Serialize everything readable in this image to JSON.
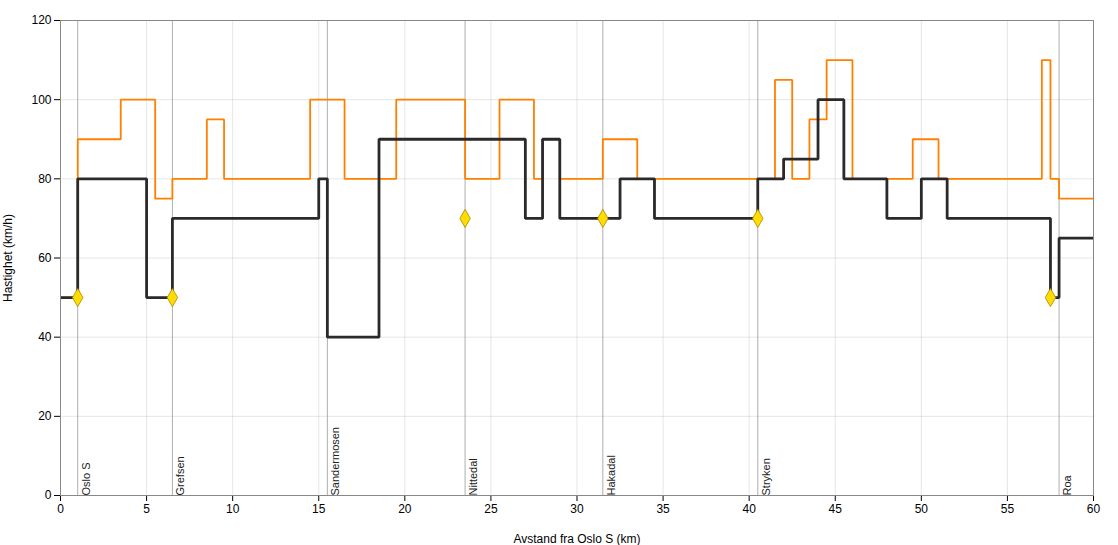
{
  "chart_data": {
    "type": "line",
    "xlabel": "Avstand fra Oslo S (km)",
    "ylabel": "Hastighet (km/h)",
    "xlim": [
      0,
      60
    ],
    "ylim": [
      0,
      120
    ],
    "xticks": [
      0,
      5,
      10,
      15,
      20,
      25,
      30,
      35,
      40,
      45,
      50,
      55,
      60
    ],
    "yticks": [
      0,
      20,
      40,
      60,
      80,
      100,
      120
    ],
    "grid": true,
    "series": [
      {
        "type": "line",
        "color": "#ff8000",
        "x": [
          0,
          1.0,
          1.0,
          3.5,
          3.5,
          5.5,
          5.5,
          6.5,
          6.5,
          8.5,
          8.5,
          9.5,
          9.5,
          14.5,
          14.5,
          16.5,
          16.5,
          19.5,
          19.5,
          23.5,
          23.5,
          25.5,
          25.5,
          27.5,
          27.5,
          28.0,
          28.0,
          29.0,
          29.0,
          31.5,
          31.5,
          33.5,
          33.5,
          40.5,
          40.5,
          41.5,
          41.5,
          42.5,
          42.5,
          43.5,
          43.5,
          44.5,
          44.5,
          46.0,
          46.0,
          48.0,
          48.0,
          49.5,
          49.5,
          51.0,
          51.0,
          51.5,
          51.5,
          55.5,
          55.5,
          57.0,
          57.0,
          57.5,
          57.5,
          58.0,
          58.0,
          60
        ],
        "values": [
          50,
          50,
          90,
          90,
          100,
          100,
          75,
          75,
          80,
          80,
          95,
          95,
          80,
          80,
          100,
          100,
          80,
          80,
          100,
          100,
          80,
          80,
          100,
          100,
          80,
          80,
          90,
          90,
          80,
          80,
          90,
          90,
          80,
          80,
          80,
          80,
          105,
          105,
          80,
          80,
          95,
          95,
          110,
          110,
          80,
          80,
          80,
          80,
          90,
          90,
          80,
          80,
          80,
          80,
          80,
          80,
          110,
          110,
          80,
          80,
          75,
          75
        ]
      },
      {
        "type": "line",
        "color": "#2a2a2a",
        "x": [
          0,
          1.0,
          1.0,
          5.0,
          5.0,
          6.5,
          6.5,
          9.5,
          9.5,
          15.0,
          15.0,
          15.5,
          15.5,
          18.5,
          18.5,
          27.0,
          27.0,
          28.0,
          28.0,
          29.0,
          29.0,
          31.5,
          31.5,
          32.5,
          32.5,
          34.5,
          34.5,
          40.5,
          40.5,
          42.0,
          42.0,
          44.0,
          44.0,
          45.5,
          45.5,
          48.0,
          48.0,
          50.0,
          50.0,
          51.5,
          51.5,
          57.5,
          57.5,
          58.0,
          58.0,
          60
        ],
        "values": [
          50,
          50,
          80,
          80,
          50,
          50,
          70,
          70,
          70,
          70,
          80,
          80,
          40,
          40,
          90,
          90,
          70,
          70,
          90,
          90,
          70,
          70,
          70,
          70,
          80,
          80,
          70,
          70,
          80,
          80,
          85,
          85,
          100,
          100,
          80,
          80,
          70,
          70,
          80,
          80,
          70,
          70,
          50,
          50,
          65,
          65
        ]
      },
      {
        "type": "scatter",
        "marker": "diamond",
        "color": "#ffdd00",
        "x": [
          1.0,
          6.5,
          23.5,
          31.5,
          40.5,
          57.5
        ],
        "values": [
          50,
          50,
          70,
          70,
          70,
          50
        ]
      }
    ],
    "annotations": [
      {
        "text": "Oslo S",
        "x": 1.0
      },
      {
        "text": "Grefsen",
        "x": 6.5
      },
      {
        "text": "Sandermosen",
        "x": 15.5
      },
      {
        "text": "Nittedal",
        "x": 23.5
      },
      {
        "text": "Hakadal",
        "x": 31.5
      },
      {
        "text": "Stryken",
        "x": 40.5
      },
      {
        "text": "Roa",
        "x": 58.0
      }
    ]
  }
}
